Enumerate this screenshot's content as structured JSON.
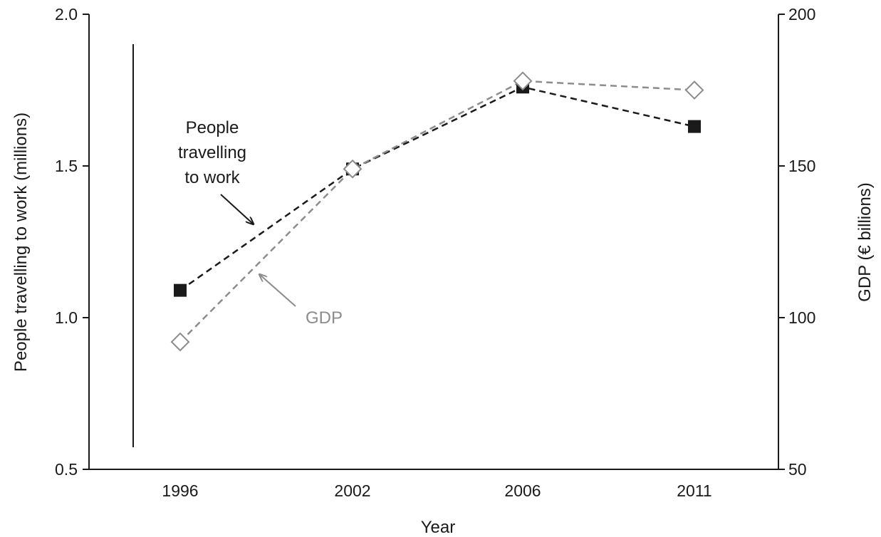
{
  "chart_data": {
    "type": "line",
    "title": "",
    "xlabel": "Year",
    "ylabel": "People travelling to work (millions)",
    "y2label": "GDP (€ billions)",
    "categories": [
      "1996",
      "2002",
      "2006",
      "2011"
    ],
    "ylim": [
      0.5,
      2.0
    ],
    "y2lim": [
      50,
      200
    ],
    "yticks": [
      "0.5",
      "1.0",
      "1.5",
      "2.0"
    ],
    "y2ticks": [
      "50",
      "100",
      "150",
      "200"
    ],
    "grid": false,
    "legend": "none",
    "series": [
      {
        "name": "People travelling to work",
        "axis": "left",
        "values": [
          1.09,
          1.49,
          1.76,
          1.63
        ],
        "color": "#1a1a1a",
        "marker": "filled-square",
        "line": "dashed"
      },
      {
        "name": "GDP",
        "axis": "right",
        "values": [
          92,
          149,
          178,
          175
        ],
        "color": "#8c8c8c",
        "marker": "open-diamond",
        "line": "dashed"
      }
    ],
    "annotations": [
      {
        "text_lines": [
          "People",
          "travelling",
          "to work"
        ],
        "target": "People travelling to work",
        "color": "#1a1a1a"
      },
      {
        "text_lines": [
          "GDP"
        ],
        "target": "GDP",
        "color": "#8c8c8c"
      }
    ]
  }
}
